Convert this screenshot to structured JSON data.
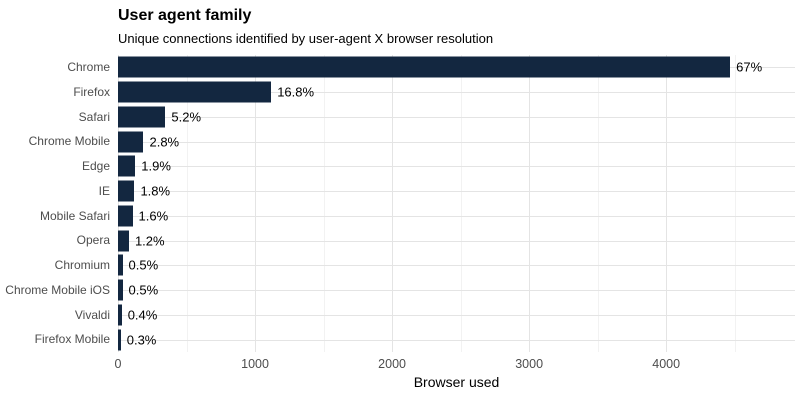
{
  "colors": {
    "bar": "#132740",
    "grid-major": "#e4e4e4",
    "grid-minor": "#f2f2f2",
    "text": "#000000",
    "text-muted": "#4d4d4d"
  },
  "chart_data": {
    "type": "bar",
    "orientation": "horizontal",
    "title": "User agent family",
    "subtitle": "Unique connections identified by user-agent X browser resolution",
    "xlabel": "Browser used",
    "ylabel": "",
    "xlim": [
      0,
      4940
    ],
    "x_ticks": [
      0,
      1000,
      2000,
      3000,
      4000
    ],
    "x_minor_grid_every": 500,
    "grid": true,
    "legend": false,
    "categories": [
      "Chrome",
      "Firefox",
      "Safari",
      "Chrome Mobile",
      "Edge",
      "IE",
      "Mobile Safari",
      "Opera",
      "Chromium",
      "Chrome Mobile iOS",
      "Vivaldi",
      "Firefox Mobile"
    ],
    "values": [
      4467,
      1118,
      346,
      186,
      126,
      120,
      106,
      80,
      33,
      33,
      27,
      20
    ],
    "labels": [
      "67%",
      "16.8%",
      "5.2%",
      "2.8%",
      "1.9%",
      "1.8%",
      "1.6%",
      "1.2%",
      "0.5%",
      "0.5%",
      "0.4%",
      "0.3%"
    ]
  }
}
